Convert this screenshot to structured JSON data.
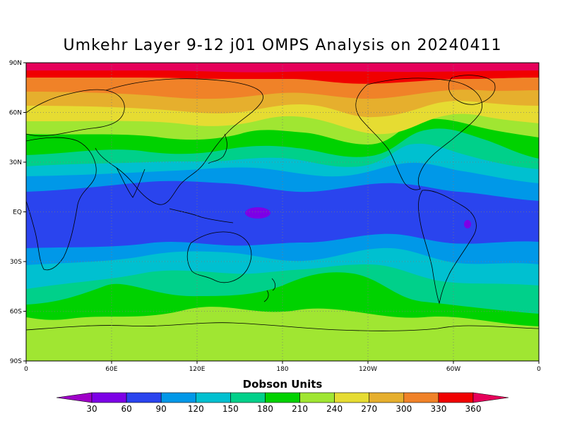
{
  "title": "Umkehr Layer 9-12 j01 OMPS Analysis on 20240411",
  "lat_labels": [
    "90N",
    "60N",
    "30N",
    "EQ",
    "30S",
    "60S",
    "90S"
  ],
  "lon_labels": [
    "0",
    "60E",
    "120E",
    "180",
    "120W",
    "60W",
    "0"
  ],
  "colorbar": {
    "title": "Dobson Units",
    "labels": [
      "30",
      "60",
      "90",
      "120",
      "150",
      "180",
      "210",
      "240",
      "270",
      "300",
      "330",
      "360"
    ],
    "colors": [
      "#9f00c8",
      "#7d00e6",
      "#2a44ee",
      "#0098e8",
      "#00c0d0",
      "#00d08a",
      "#00d200",
      "#a0e632",
      "#e6dc32",
      "#e6af2d",
      "#f08228",
      "#f00000",
      "#e6005a"
    ]
  },
  "map": {
    "projection": "equirectangular",
    "lon_range": [
      0,
      360
    ],
    "lat_range": [
      -90,
      90
    ],
    "grid": "dotted, every 30 deg lat / 60 deg lon",
    "band_colors": {
      "north_polar": "#e6005a",
      "north_high": "#f00000",
      "north_mid": "#f08228",
      "north_sub": "#e6af2d",
      "yellow": "#e6dc32",
      "lime": "#a0e632",
      "green": "#00d200",
      "teal": "#00d08a",
      "cyan": "#00c0d0",
      "sky": "#0098e8",
      "blue": "#2a44ee",
      "violet": "#7d00e6",
      "south_teal": "#00d08a",
      "south_green": "#00d200",
      "south_polar": "#a0e632"
    }
  }
}
